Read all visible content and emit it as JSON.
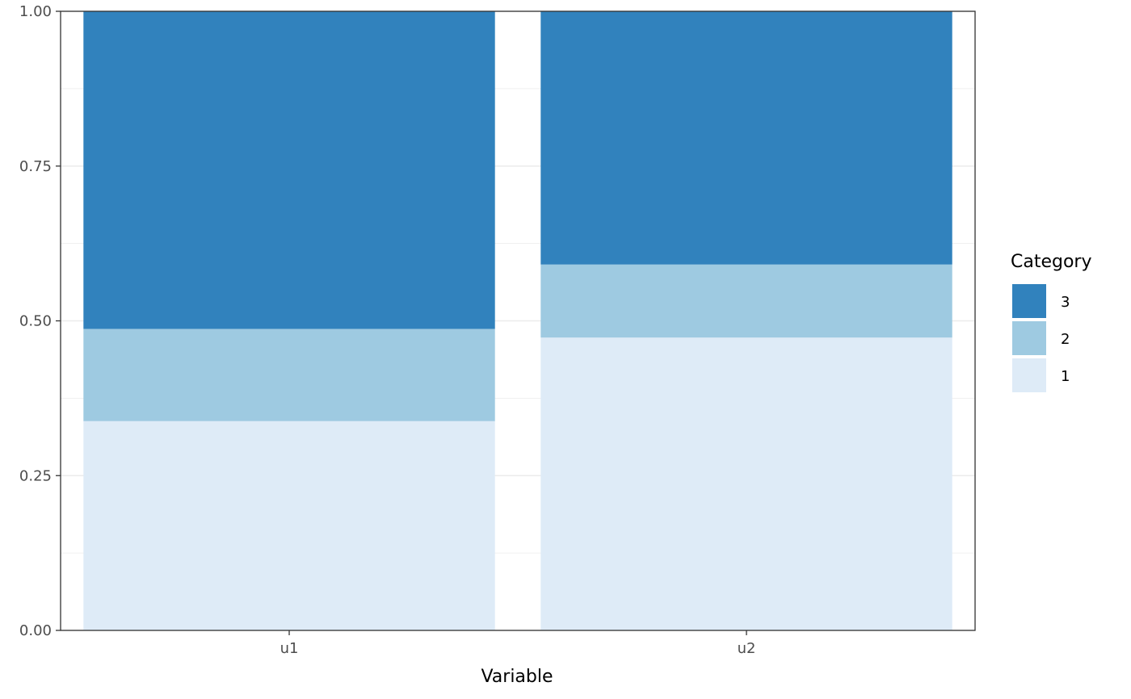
{
  "chart_data": {
    "type": "bar",
    "stacked": true,
    "categories": [
      "u1",
      "u2"
    ],
    "series": [
      {
        "name": "1",
        "values": [
          0.338,
          0.473
        ],
        "color": "#deebf7"
      },
      {
        "name": "2",
        "values": [
          0.149,
          0.118
        ],
        "color": "#9ecae1"
      },
      {
        "name": "3",
        "values": [
          0.513,
          0.409
        ],
        "color": "#3182bd"
      }
    ],
    "xlabel": "Variable",
    "ylabel": "",
    "ylim": [
      0,
      1
    ],
    "yticks": [
      "0.00",
      "0.25",
      "0.50",
      "0.75",
      "1.00"
    ],
    "legend": {
      "title": "Category",
      "position": "right",
      "order": [
        "3",
        "2",
        "1"
      ]
    },
    "grid": true,
    "background": "#ffffff",
    "panel_border": "#333333",
    "grid_color": "#ebebeb"
  }
}
